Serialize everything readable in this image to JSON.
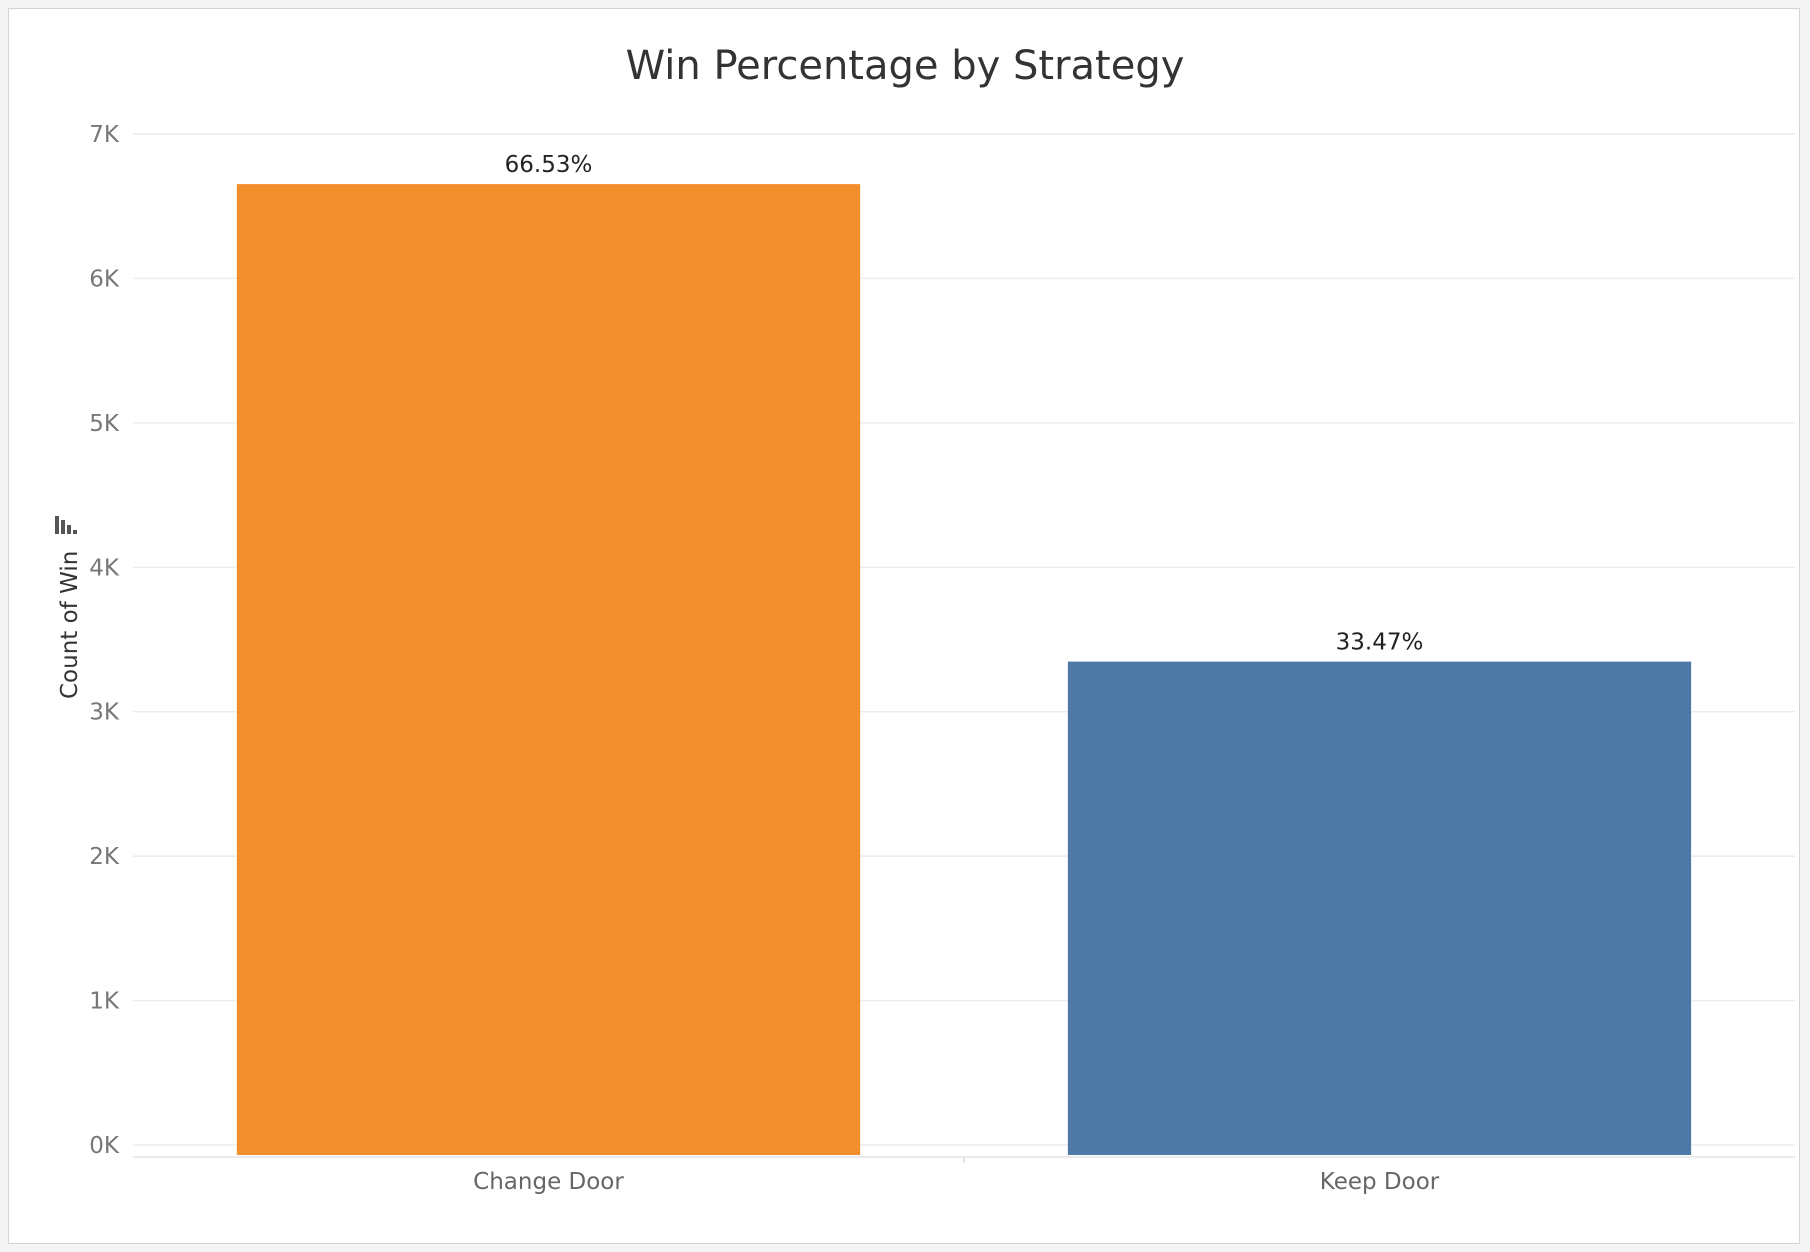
{
  "chart_data": {
    "type": "bar",
    "title": "Win Percentage by Strategy",
    "xlabel": "",
    "ylabel": "Count of Win",
    "categories": [
      "Change Door",
      "Keep Door"
    ],
    "values": [
      6653,
      3347
    ],
    "data_labels": [
      "66.53%",
      "33.47%"
    ],
    "colors": [
      "#f28e2b",
      "#4e79a7"
    ],
    "ylim": [
      0,
      7000
    ],
    "yticks": [
      0,
      1000,
      2000,
      3000,
      4000,
      5000,
      6000,
      7000
    ],
    "ytick_labels": [
      "0K",
      "1K",
      "2K",
      "3K",
      "4K",
      "5K",
      "6K",
      "7K"
    ],
    "grid": true,
    "legend": "none"
  },
  "axis_icon": "sort-descending-icon"
}
